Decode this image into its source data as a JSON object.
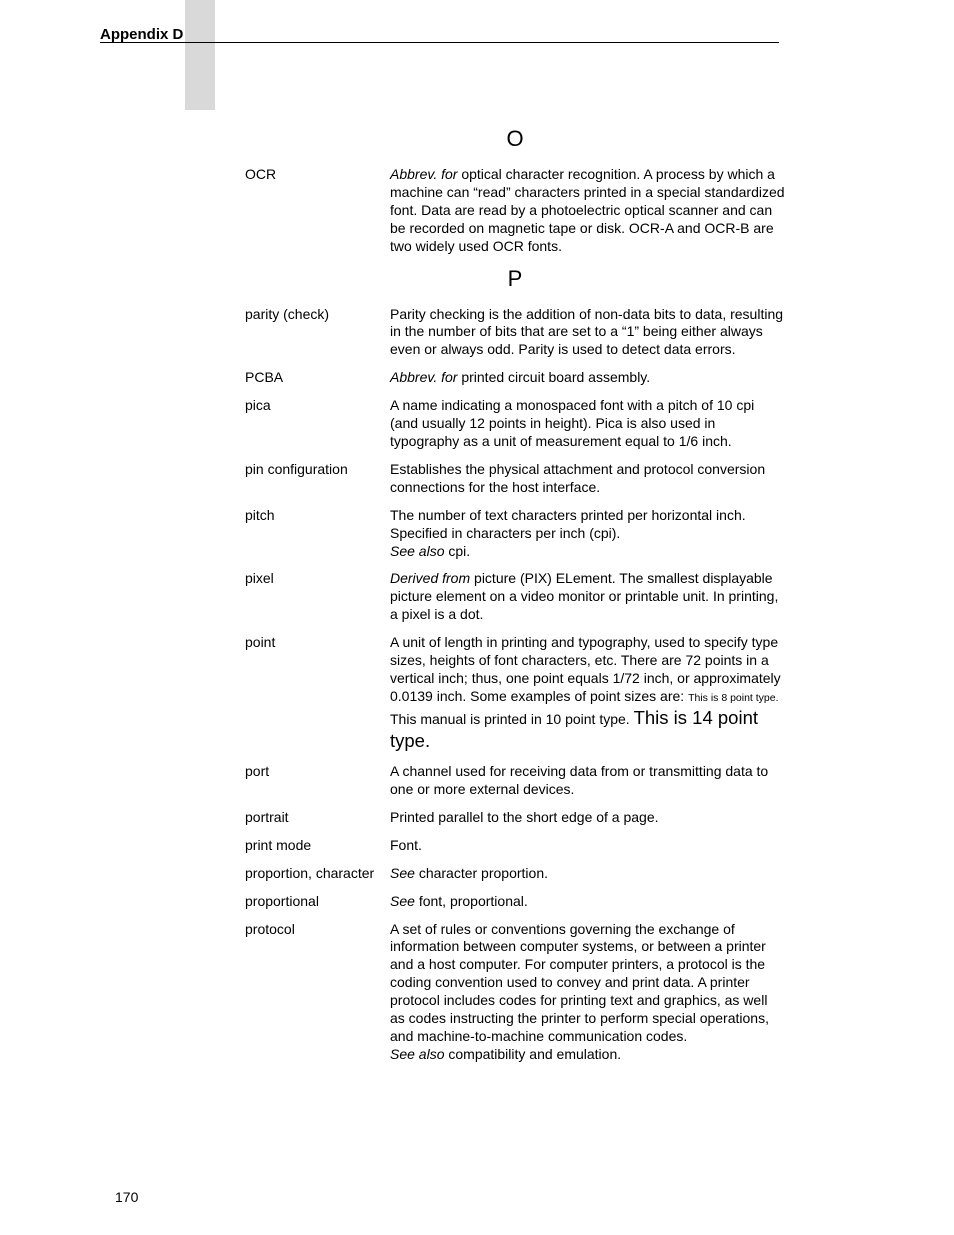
{
  "header": {
    "label": "Appendix D"
  },
  "pageNumber": "170",
  "sections": [
    {
      "letter": "O",
      "entries": [
        {
          "term": "OCR",
          "def": [
            {
              "t": "Abbrev. for ",
              "italic": true
            },
            {
              "t": "optical character recognition. A process by which a machine can “read” characters printed in a special standardized font. Data are read by a photoelectric optical scanner and can be recorded on magnetic tape or disk. OCR-A and OCR-B are two widely used OCR fonts."
            }
          ]
        }
      ]
    },
    {
      "letter": "P",
      "entries": [
        {
          "term": "parity (check)",
          "def": [
            {
              "t": "Parity checking is the addition of non-data bits to data, resulting in the number of bits that are set to a “1” being either always even or always odd. Parity is used to detect data errors."
            }
          ]
        },
        {
          "term": "PCBA",
          "def": [
            {
              "t": "Abbrev. for ",
              "italic": true
            },
            {
              "t": "printed circuit board assembly."
            }
          ]
        },
        {
          "term": "pica",
          "def": [
            {
              "t": "A name indicating a monospaced font with a pitch of 10 cpi (and usually 12 points in height). Pica is also used in typography as a unit of measurement equal to 1/6 inch."
            }
          ]
        },
        {
          "term": "pin configuration",
          "def": [
            {
              "t": "Establishes the physical attachment and protocol conversion connections for the host interface."
            }
          ]
        },
        {
          "term": "pitch",
          "def": [
            {
              "t": "The number of text characters printed per horizontal inch. Specified in characters per inch (cpi)."
            },
            {
              "br": true
            },
            {
              "t": "See also ",
              "italic": true
            },
            {
              "t": "cpi."
            }
          ]
        },
        {
          "term": "pixel",
          "def": [
            {
              "t": "Derived from ",
              "italic": true
            },
            {
              "t": "picture (PIX) ELement. The smallest displayable picture element on a video monitor or printable unit. In printing, a pixel is a dot."
            }
          ]
        },
        {
          "term": "point",
          "def": [
            {
              "t": "A unit of length in printing and typography, used to specify type sizes, heights of font characters, etc. There are 72 points in a vertical inch; thus, one point equals 1/72 inch, or approximately 0.0139 inch. Some examples of point sizes are: "
            },
            {
              "t": "This is 8 point type.",
              "size": "pt8"
            },
            {
              "t": " This manual is printed in 10 point type. "
            },
            {
              "t": "This is 14 point type.",
              "size": "pt14"
            }
          ]
        },
        {
          "term": "port",
          "def": [
            {
              "t": "A channel used for receiving data from or transmitting data to one or more external devices."
            }
          ]
        },
        {
          "term": "portrait",
          "def": [
            {
              "t": "Printed parallel to the short edge of a page."
            }
          ]
        },
        {
          "term": "print mode",
          "def": [
            {
              "t": "Font."
            }
          ]
        },
        {
          "term": "proportion, character",
          "def": [
            {
              "t": "See ",
              "italic": true
            },
            {
              "t": "character proportion."
            }
          ]
        },
        {
          "term": "proportional",
          "def": [
            {
              "t": "See ",
              "italic": true
            },
            {
              "t": "font, proportional."
            }
          ]
        },
        {
          "term": "protocol",
          "def": [
            {
              "t": "A set of rules or conventions governing the exchange of information between computer systems, or between a printer and a host computer. For computer printers, a protocol is the coding convention used to convey and print data. A printer protocol includes codes for printing text and graphics, as well as codes instructing the printer to perform special operations, and machine-to-machine communication codes."
            },
            {
              "br": true
            },
            {
              "t": "See also ",
              "italic": true
            },
            {
              "t": "compatibility and emulation."
            }
          ]
        }
      ]
    }
  ]
}
